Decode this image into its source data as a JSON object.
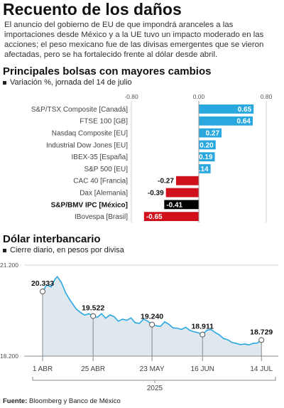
{
  "title": "Recuento de los daños",
  "intro": "El anuncio del gobierno de EU de que impondrá aranceles a las importaciones desde México y a la UE tuvo un impacto moderado en las  acciones; el peso mexicano fue de las divisas emergentes que se vieron afectadas, pero se ha fortalecido frente al dólar desde abril.",
  "section1": {
    "heading": "Principales bolsas con mayores cambios",
    "subheading": "Variación %, jornada del 14 de julio"
  },
  "section2": {
    "heading": "Dólar interbancario",
    "subheading": "Cierre diario, en pesos por divisa"
  },
  "source": {
    "label": "Fuente:",
    "text": " Bloomberg y Banco de México"
  },
  "colors": {
    "positive": "#29a8e0",
    "negative": "#d0111b",
    "highlight": "#000000",
    "line": "#29a8e0",
    "area": "#dfe7ef"
  },
  "chart_data": [
    {
      "type": "bar",
      "orientation": "horizontal",
      "xlim": [
        -0.8,
        0.8
      ],
      "ticks": [
        "-0.80",
        "0.00",
        "0.80"
      ],
      "categories": [
        "S&P/TSX Composite [Canadá]",
        "FTSE 100 [GB]",
        "Nasdaq Composite [EU]",
        "Industrial Dow Jones [EU]",
        "IBEX-35 [España]",
        "S&P 500 [EU]",
        "CAC 40 [Francia]",
        "Dax [Alemania]",
        "S&P/BMV IPC [México]",
        "IBovespa [Brasil]"
      ],
      "values": [
        0.65,
        0.64,
        0.27,
        0.2,
        0.19,
        0.14,
        -0.27,
        -0.39,
        -0.41,
        -0.65
      ],
      "labels": [
        "0.65",
        "0.64",
        "0.27",
        "0.20",
        "0.19",
        "0.14",
        "-0.27",
        "-0.39",
        "-0.41",
        "-0.65"
      ],
      "highlight": "S&P/BMV IPC [México]"
    },
    {
      "type": "area",
      "ylim": [
        18.2,
        21.2
      ],
      "yticks": [
        "21.200",
        "18.200"
      ],
      "xticks": [
        "1 ABR",
        "25 ABR",
        "23 MAY",
        "16 JUN",
        "14 JUL"
      ],
      "xtick_days": [
        0,
        24,
        52,
        76,
        104
      ],
      "year_label": "2025",
      "x_days": [
        0,
        2,
        4,
        6,
        7,
        9,
        11,
        13,
        15,
        16,
        18,
        20,
        22,
        24,
        26,
        28,
        30,
        32,
        34,
        36,
        38,
        40,
        42,
        44,
        46,
        48,
        50,
        52,
        54,
        56,
        58,
        60,
        62,
        64,
        66,
        68,
        70,
        72,
        74,
        76,
        78,
        80,
        82,
        84,
        86,
        88,
        90,
        92,
        94,
        96,
        98,
        100,
        102,
        104
      ],
      "y": [
        20.33,
        20.55,
        20.48,
        20.75,
        20.82,
        20.62,
        20.28,
        20.05,
        19.85,
        19.75,
        19.64,
        19.55,
        19.6,
        19.52,
        19.48,
        19.6,
        19.45,
        19.56,
        19.5,
        19.35,
        19.42,
        19.38,
        19.46,
        19.3,
        19.28,
        19.42,
        19.35,
        19.24,
        19.2,
        19.18,
        19.33,
        19.25,
        19.13,
        19.12,
        19.08,
        19.15,
        19.05,
        19.0,
        18.97,
        18.91,
        19.05,
        19.08,
        18.98,
        18.9,
        18.78,
        18.74,
        18.65,
        18.62,
        18.58,
        18.6,
        18.57,
        18.62,
        18.63,
        18.73
      ],
      "annotations": [
        {
          "day": 0,
          "value": 20.333,
          "label": "20.333"
        },
        {
          "day": 24,
          "value": 19.522,
          "label": "19.522"
        },
        {
          "day": 52,
          "value": 19.24,
          "label": "19.240"
        },
        {
          "day": 76,
          "value": 18.911,
          "label": "18.911"
        },
        {
          "day": 104,
          "value": 18.729,
          "label": "18.729"
        }
      ]
    }
  ]
}
